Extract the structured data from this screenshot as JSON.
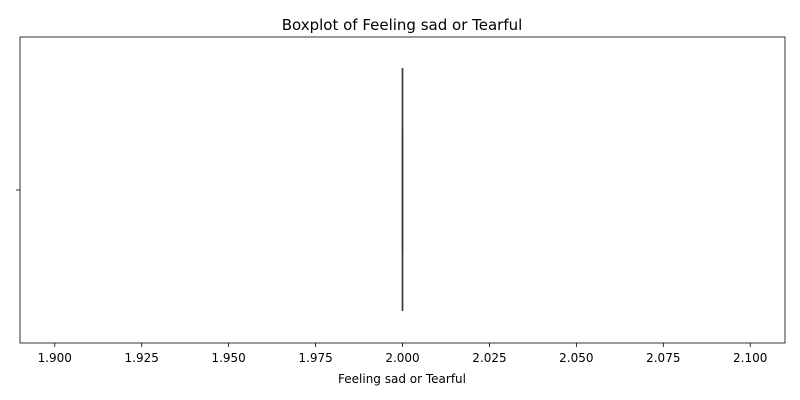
{
  "chart_data": {
    "type": "boxplot",
    "orientation": "horizontal",
    "title": "Boxplot of Feeling sad or Tearful",
    "xlabel": "Feeling sad or Tearful",
    "ylabel": "",
    "xlim": [
      1.89,
      2.11
    ],
    "x_ticks": [
      1.9,
      1.925,
      1.95,
      1.975,
      2.0,
      2.025,
      2.05,
      2.075,
      2.1
    ],
    "x_tick_labels": [
      "1.900",
      "1.925",
      "1.950",
      "1.975",
      "2.000",
      "2.025",
      "2.050",
      "2.075",
      "2.100"
    ],
    "grid": false,
    "legend": "none",
    "box": {
      "min": 2.0,
      "q1": 2.0,
      "median": 2.0,
      "q3": 2.0,
      "max": 2.0
    },
    "colors": {
      "box_line": "#3d3d3d",
      "axes": "#000000"
    }
  }
}
